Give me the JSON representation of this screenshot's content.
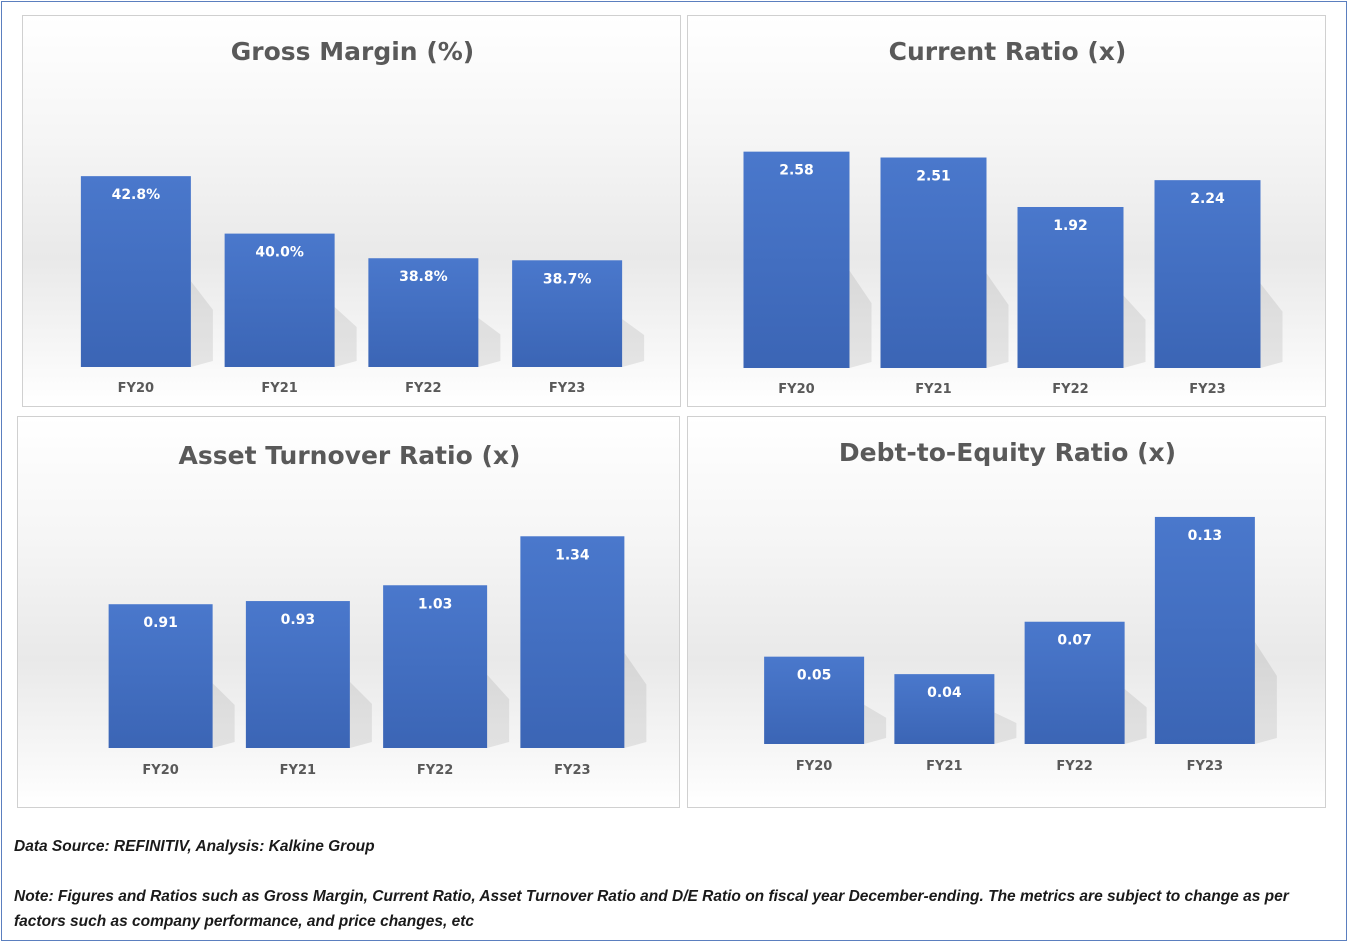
{
  "chart_data": [
    {
      "type": "bar",
      "title": "Gross Margin (%)",
      "categories": [
        "FY20",
        "FY21",
        "FY22",
        "FY23"
      ],
      "values": [
        42.8,
        40.0,
        38.8,
        38.7
      ],
      "labels": [
        "42.8%",
        "40.0%",
        "38.8%",
        "38.7%"
      ],
      "ylim": [
        33.5,
        45
      ],
      "grid": false,
      "bar_color": "#4472c4"
    },
    {
      "type": "bar",
      "title": "Current Ratio (x)",
      "categories": [
        "FY20",
        "FY21",
        "FY22",
        "FY23"
      ],
      "values": [
        2.58,
        2.51,
        1.92,
        2.24
      ],
      "labels": [
        "2.58",
        "2.51",
        "1.92",
        "2.24"
      ],
      "ylim": [
        0,
        2.85
      ],
      "grid": false,
      "bar_color": "#4472c4"
    },
    {
      "type": "bar",
      "title": "Asset Turnover Ratio (x)",
      "categories": [
        "FY20",
        "FY21",
        "FY22",
        "FY23"
      ],
      "values": [
        0.91,
        0.93,
        1.03,
        1.34
      ],
      "labels": [
        "0.91",
        "0.93",
        "1.03",
        "1.34"
      ],
      "ylim": [
        0,
        1.5
      ],
      "grid": false,
      "bar_color": "#4472c4"
    },
    {
      "type": "bar",
      "title": "Debt-to-Equity Ratio (x)",
      "categories": [
        "FY20",
        "FY21",
        "FY22",
        "FY23"
      ],
      "values": [
        0.05,
        0.04,
        0.07,
        0.13
      ],
      "labels": [
        "0.05",
        "0.04",
        "0.07",
        "0.13"
      ],
      "ylim": [
        0,
        0.15
      ],
      "grid": false,
      "bar_color": "#4472c4"
    }
  ],
  "footer": {
    "source": "Data Source: REFINITIV, Analysis: Kalkine Group",
    "note_line1": "Note: Figures and Ratios such as Gross Margin, Current Ratio, Asset Turnover Ratio and D/E Ratio on fiscal year December-ending. The metrics are subject to change as per",
    "note_line2": "factors such as company performance, and price changes, etc"
  }
}
